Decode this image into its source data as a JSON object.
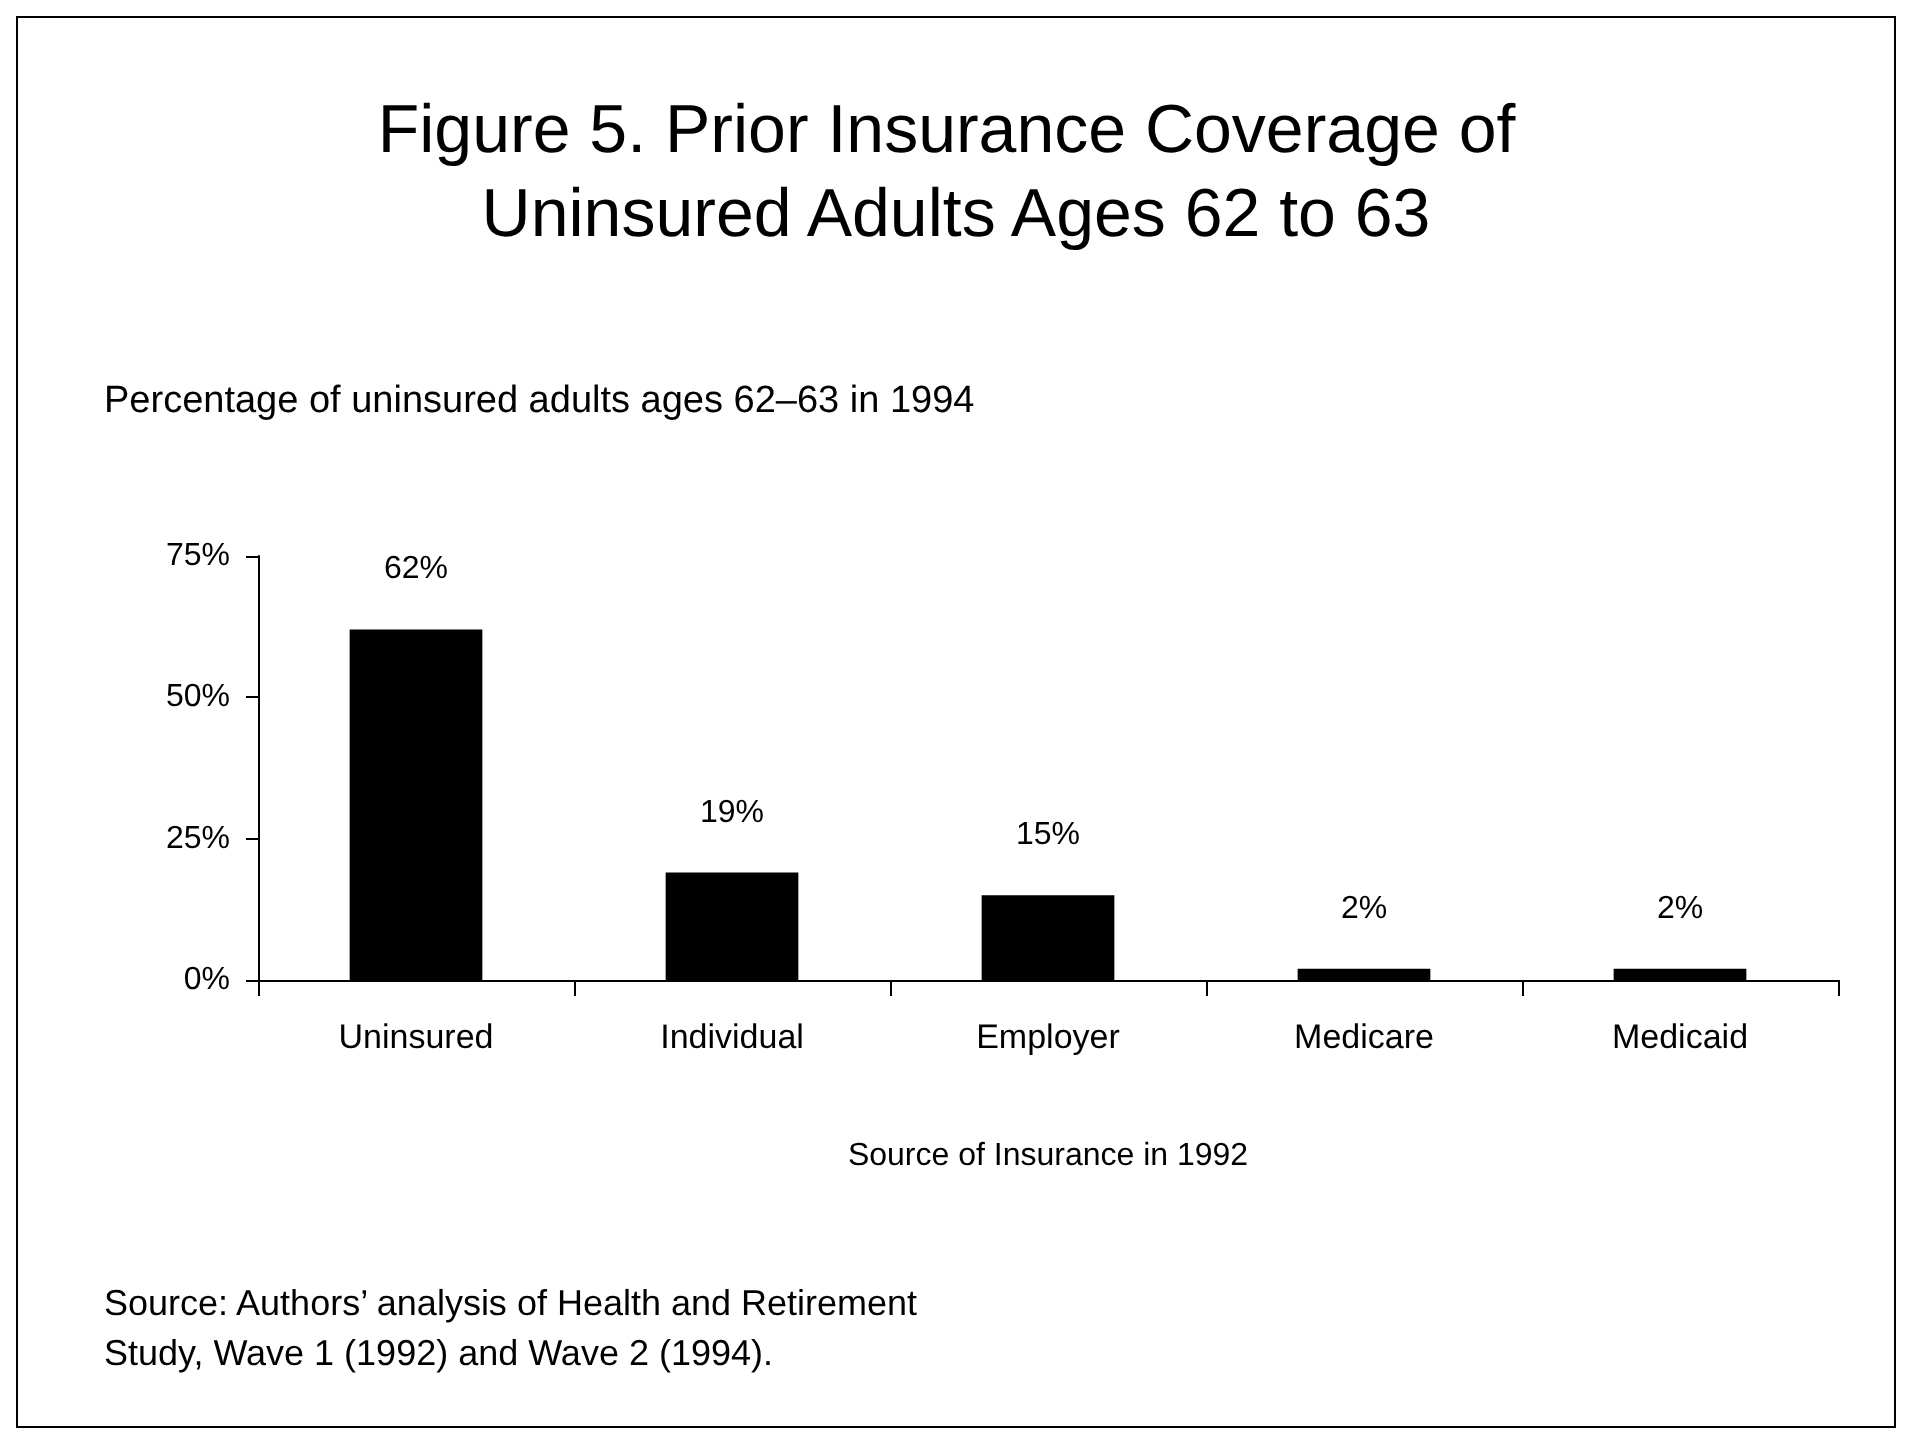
{
  "chart_data": {
    "type": "bar",
    "title": "Figure 5. Prior Insurance Coverage of Uninsured Adults Ages 62 to 63",
    "ylabel": "Percentage of uninsured adults ages 62–63 in 1994",
    "xlabel": "Source of Insurance in 1992",
    "categories": [
      "Uninsured",
      "Individual",
      "Employer",
      "Medicare",
      "Medicaid"
    ],
    "values": [
      62,
      19,
      15,
      2,
      2
    ],
    "value_labels": [
      "62%",
      "19%",
      "15%",
      "2%",
      "2%"
    ],
    "color": "#000000",
    "ylim": [
      0,
      75
    ],
    "yticks": [
      {
        "value": 0,
        "label": "0%"
      },
      {
        "value": 25,
        "label": "25%"
      },
      {
        "value": 50,
        "label": "50%"
      },
      {
        "value": 75,
        "label": "75%"
      }
    ],
    "grid": false,
    "annotations": [
      "Source: Authors’ analysis of Health and Retirement Study, Wave 1 (1992) and Wave 2 (1994)."
    ]
  }
}
